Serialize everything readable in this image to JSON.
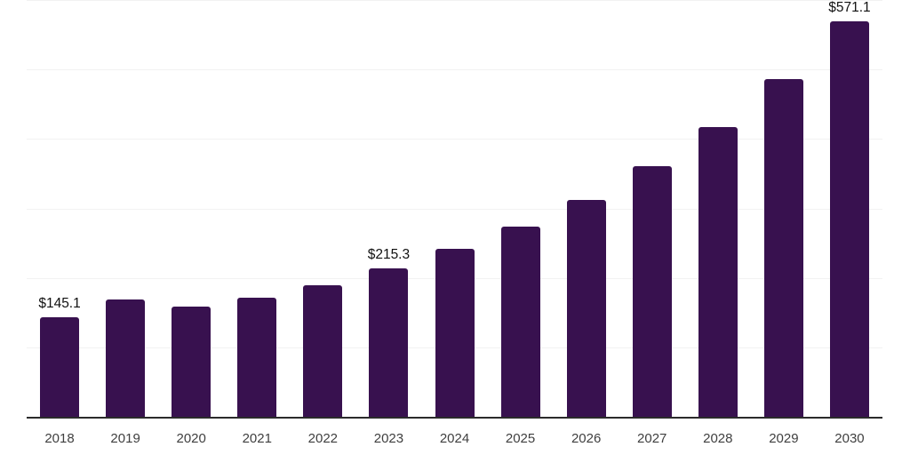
{
  "chart_data": {
    "type": "bar",
    "title": "",
    "xlabel": "",
    "ylabel": "",
    "categories": [
      "2018",
      "2019",
      "2020",
      "2021",
      "2022",
      "2023",
      "2024",
      "2025",
      "2026",
      "2027",
      "2028",
      "2029",
      "2030"
    ],
    "values": [
      145.1,
      170,
      160,
      173,
      191,
      215.3,
      243,
      275,
      314,
      362,
      418,
      487,
      571.1
    ],
    "point_labels": [
      "$145.1",
      null,
      null,
      null,
      null,
      "$215.3",
      null,
      null,
      null,
      null,
      null,
      null,
      "$571.1"
    ],
    "ylim": [
      0,
      600
    ],
    "gridline_step": 100,
    "grid": "horizontal",
    "y_axis_labels_visible": false,
    "legend": "none",
    "colors": {
      "bar": "#38114F",
      "axis_line": "#2b2b2b",
      "gridline": "#f2f2f2",
      "point_label_text": "#111111",
      "tick_label_text": "#3f3f3f",
      "background": "#ffffff"
    }
  }
}
